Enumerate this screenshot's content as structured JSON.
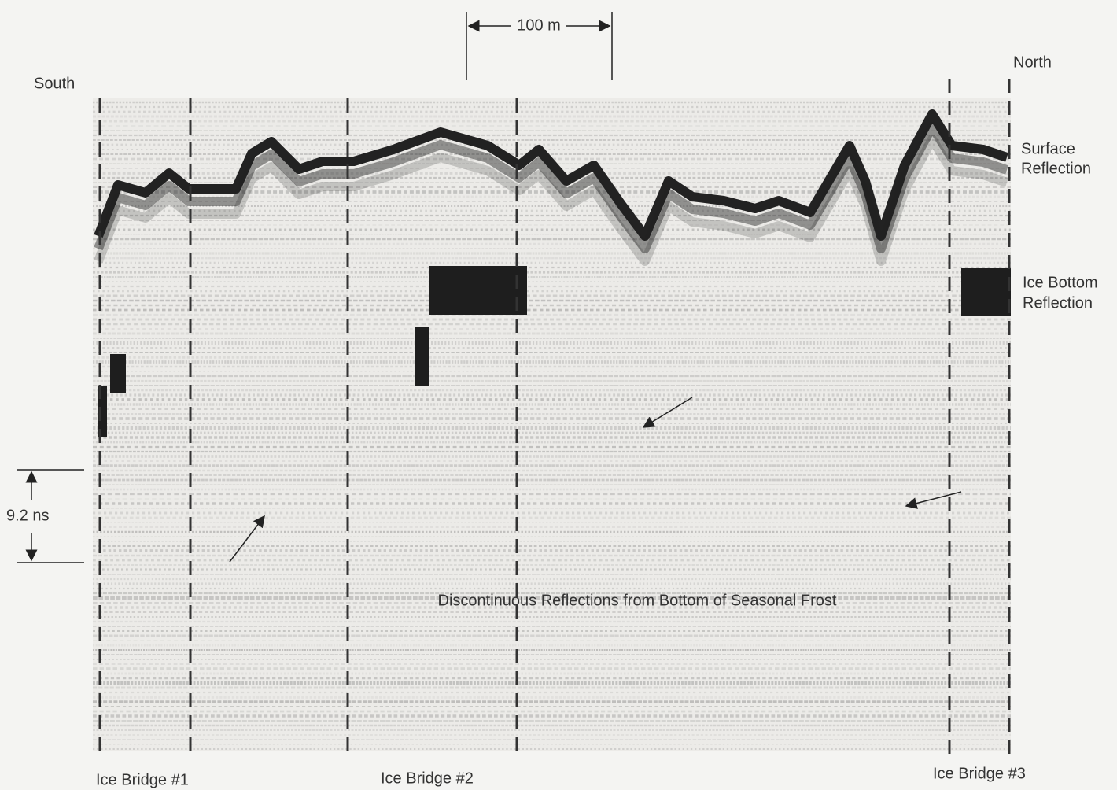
{
  "scale_bar": {
    "label": "100 m"
  },
  "labels": {
    "south": "South",
    "north": "North",
    "surface_reflection": [
      "Surface",
      "Reflection"
    ],
    "ice_bottom_reflection": [
      "Ice Bottom",
      "Reflection"
    ],
    "time_scale": "9.2 ns",
    "frost_note": "Discontinuous Reflections from Bottom of Seasonal Frost"
  },
  "ice_bridges": [
    "Ice Bridge #1",
    "Ice Bridge #2",
    "Ice Bridge #3"
  ]
}
